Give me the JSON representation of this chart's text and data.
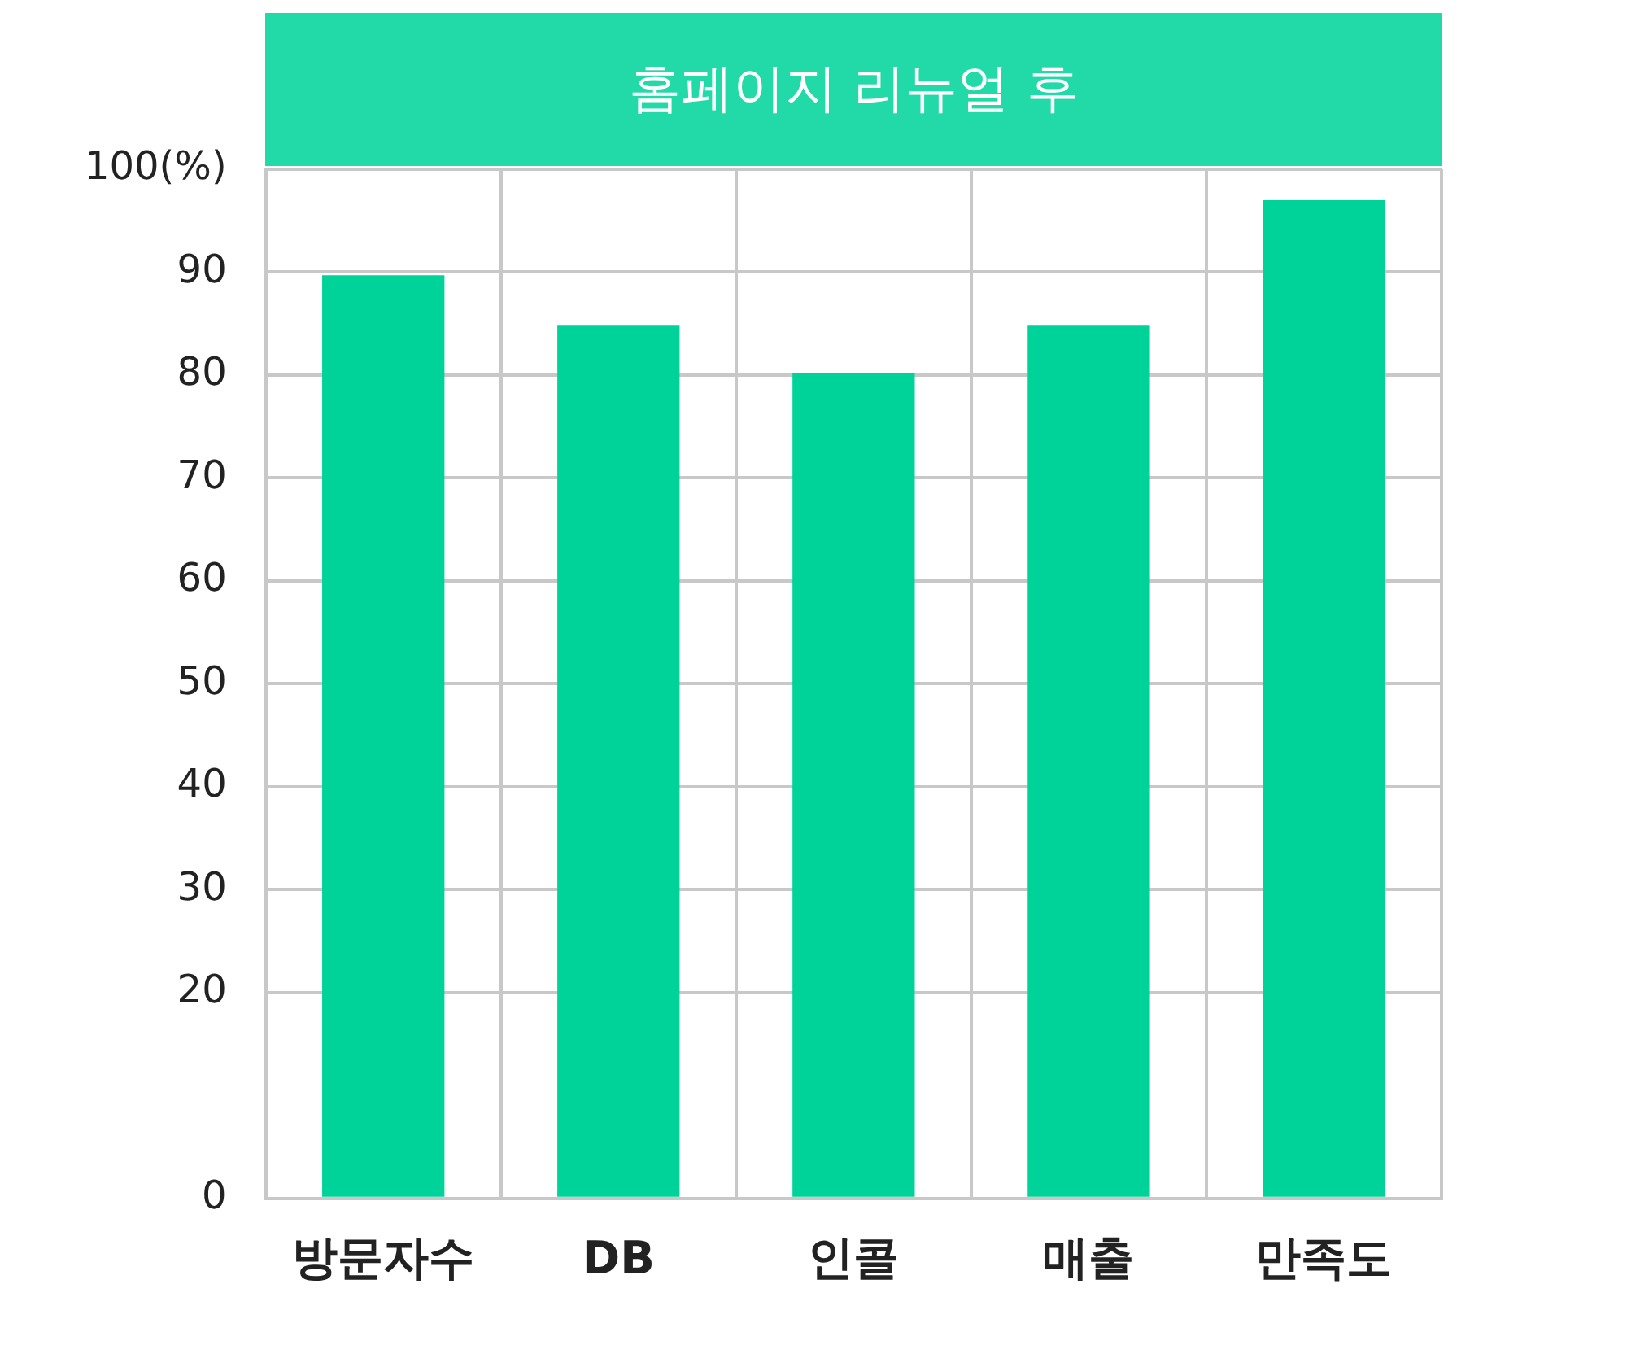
{
  "chart_data": {
    "type": "bar",
    "title": "홈페이지 리뉴얼 후",
    "categories": [
      "방문자수",
      "DB",
      "인콜",
      "매출",
      "만족도"
    ],
    "values": [
      89.7,
      84.8,
      80.2,
      84.8,
      97
    ],
    "color": "#00d39a",
    "ylim": [
      0,
      100
    ],
    "yticks": [
      0,
      20,
      30,
      40,
      50,
      60,
      70,
      80,
      90,
      {
        "value": 100,
        "label": "100(%)"
      }
    ],
    "grid": true
  }
}
